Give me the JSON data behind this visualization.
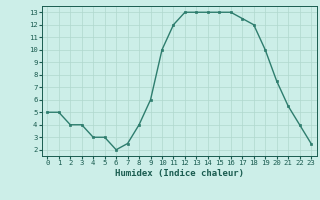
{
  "x": [
    0,
    1,
    2,
    3,
    4,
    5,
    6,
    7,
    8,
    9,
    10,
    11,
    12,
    13,
    14,
    15,
    16,
    17,
    18,
    19,
    20,
    21,
    22,
    23
  ],
  "y": [
    5,
    5,
    4,
    4,
    3,
    3,
    2,
    2.5,
    4,
    6,
    10,
    12,
    13,
    13,
    13,
    13,
    13,
    12.5,
    12,
    10,
    7.5,
    5.5,
    4,
    2.5
  ],
  "xlabel": "Humidex (Indice chaleur)",
  "xlim": [
    -0.5,
    23.5
  ],
  "ylim": [
    1.5,
    13.5
  ],
  "yticks": [
    2,
    3,
    4,
    5,
    6,
    7,
    8,
    9,
    10,
    11,
    12,
    13
  ],
  "xticks": [
    0,
    1,
    2,
    3,
    4,
    5,
    6,
    7,
    8,
    9,
    10,
    11,
    12,
    13,
    14,
    15,
    16,
    17,
    18,
    19,
    20,
    21,
    22,
    23
  ],
  "line_color": "#2e7d6e",
  "marker_color": "#2e7d6e",
  "bg_color": "#cceee8",
  "grid_color": "#b0d8ce",
  "tick_label_color": "#1a5c50",
  "xlabel_color": "#1a5c50"
}
